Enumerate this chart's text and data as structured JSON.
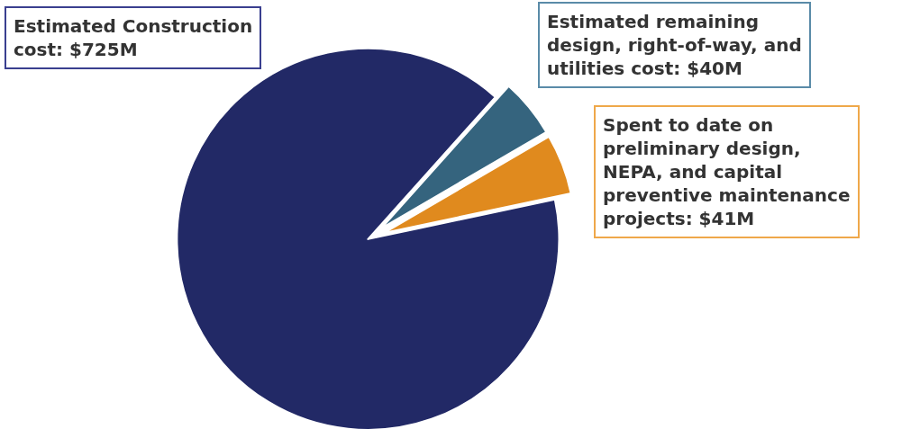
{
  "chart_data": {
    "type": "pie",
    "categories": [
      "Estimated Construction cost",
      "Estimated remaining design, right-of-way, and utilities cost",
      "Spent to date on preliminary design, NEPA, and capital preventive maintenance projects"
    ],
    "values": [
      725,
      40,
      41
    ],
    "value_labels": [
      "$725M",
      "$40M",
      "$41M"
    ],
    "colors": [
      "#222966",
      "#35647e",
      "#e08a1e"
    ],
    "legend": false
  }
}
